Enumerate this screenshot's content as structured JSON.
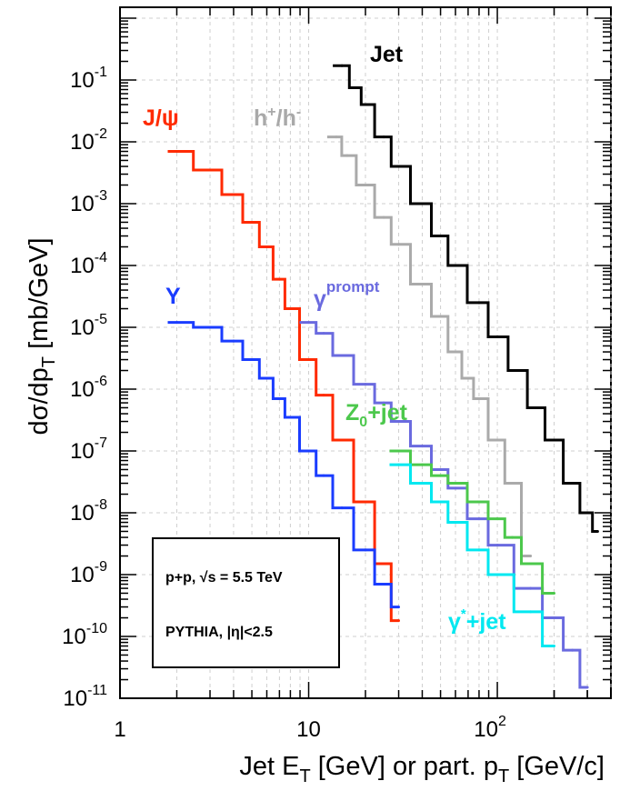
{
  "chart_data": {
    "type": "line",
    "title": "",
    "xlabel": "Jet E_T [GeV] or part. p_T [GeV/c]",
    "ylabel": "dσ/dp_T [mb/GeV]",
    "x_scale": "log",
    "y_scale": "log",
    "xlim": [
      1,
      400
    ],
    "ylim": [
      1e-11,
      1.5
    ],
    "grid": true,
    "x_ticks": [
      {
        "value": 1,
        "base": "1",
        "exp": ""
      },
      {
        "value": 10,
        "base": "10",
        "exp": ""
      },
      {
        "value": 100,
        "base": "10",
        "exp": "2"
      }
    ],
    "y_ticks": [
      {
        "value": 0.1,
        "base": "10",
        "exp": "-1"
      },
      {
        "value": 0.01,
        "base": "10",
        "exp": "-2"
      },
      {
        "value": 0.001,
        "base": "10",
        "exp": "-3"
      },
      {
        "value": 0.0001,
        "base": "10",
        "exp": "-4"
      },
      {
        "value": 1e-05,
        "base": "10",
        "exp": "-5"
      },
      {
        "value": 1e-06,
        "base": "10",
        "exp": "-6"
      },
      {
        "value": 1e-07,
        "base": "10",
        "exp": "-7"
      },
      {
        "value": 1e-08,
        "base": "10",
        "exp": "-8"
      },
      {
        "value": 1e-09,
        "base": "10",
        "exp": "-9"
      },
      {
        "value": 1e-10,
        "base": "10",
        "exp": "-10"
      },
      {
        "value": 1e-11,
        "base": "10",
        "exp": "-11"
      }
    ],
    "series": [
      {
        "name": "Jet",
        "color": "#000000",
        "x": [
          15,
          18,
          20,
          25,
          30,
          40,
          50,
          60,
          80,
          100,
          130,
          160,
          200,
          250,
          300,
          340
        ],
        "y": [
          0.17,
          0.075,
          0.04,
          0.012,
          0.004,
          0.001,
          0.0003,
          0.0001,
          2.5e-05,
          7e-06,
          2e-06,
          5e-07,
          1.5e-07,
          3e-08,
          1e-08,
          5e-09
        ]
      },
      {
        "name": "h+/h-",
        "color": "#aaaaaa",
        "x": [
          14,
          16,
          20,
          25,
          30,
          40,
          50,
          60,
          70,
          80,
          100,
          120,
          150
        ],
        "y": [
          0.012,
          0.006,
          0.002,
          0.0006,
          0.00022,
          5e-05,
          1.5e-05,
          4e-06,
          1.5e-06,
          7e-07,
          1.5e-07,
          3e-08,
          2e-09
        ]
      },
      {
        "name": "J/ψ",
        "color": "#ff2a00",
        "x": [
          2,
          3,
          4,
          5,
          6,
          7,
          8,
          10,
          12,
          15,
          20,
          25,
          30
        ],
        "y": [
          0.007,
          0.0035,
          0.0014,
          0.0005,
          0.0002,
          6e-05,
          2e-05,
          3e-06,
          8e-07,
          1.5e-07,
          1.5e-08,
          1.5e-09,
          1.8e-10
        ]
      },
      {
        "name": "Υ",
        "color": "#1a3cff",
        "x": [
          2,
          3,
          4,
          5,
          6,
          7,
          8,
          10,
          12,
          15,
          20,
          25,
          30
        ],
        "y": [
          1.2e-05,
          1e-05,
          6e-06,
          3e-06,
          1.5e-06,
          7e-07,
          3.5e-07,
          1e-07,
          4e-08,
          1.2e-08,
          2.5e-09,
          7e-10,
          3e-10
        ]
      },
      {
        "name": "γ prompt",
        "color": "#6a6adf",
        "x": [
          10,
          12,
          15,
          20,
          25,
          30,
          40,
          50,
          60,
          80,
          100,
          150,
          200,
          250,
          300
        ],
        "y": [
          1.2e-05,
          8e-06,
          3.5e-06,
          1.2e-06,
          6e-07,
          3e-07,
          1.2e-07,
          5e-08,
          2.5e-08,
          8e-09,
          3e-09,
          6e-10,
          2e-10,
          6e-11,
          1.5e-11
        ]
      },
      {
        "name": "Z0+jet",
        "color": "#4cc84c",
        "x": [
          30,
          40,
          50,
          60,
          80,
          100,
          120,
          150,
          200
        ],
        "y": [
          1e-07,
          6e-08,
          4e-08,
          3e-08,
          1.5e-08,
          8e-09,
          4e-09,
          1.5e-09,
          5e-10
        ]
      },
      {
        "name": "γ*+jet",
        "color": "#00e8f0",
        "x": [
          30,
          40,
          50,
          60,
          80,
          100,
          150,
          200
        ],
        "y": [
          6e-08,
          3e-08,
          1.5e-08,
          7e-09,
          2.5e-09,
          1e-09,
          2.5e-10,
          7e-11
        ]
      }
    ],
    "annotations": [
      {
        "text": "p+p, √s = 5.5 TeV"
      },
      {
        "text": "PYTHIA, |η|<2.5"
      }
    ]
  }
}
